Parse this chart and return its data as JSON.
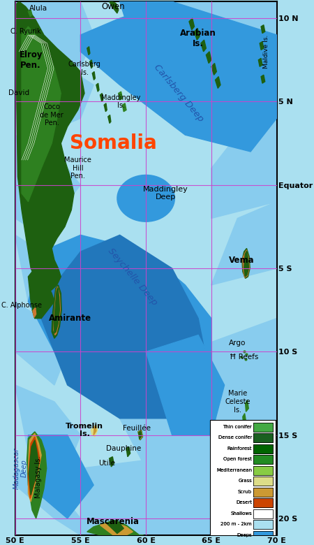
{
  "shallow_color": "#AAE0F0",
  "medium_color": "#88CCEE",
  "deep_color": "#3399DD",
  "deeper_color": "#2277BB",
  "land_darkest": "#1A4A10",
  "land_dark": "#1E6010",
  "land_medium": "#2E8020",
  "land_light": "#44AA22",
  "land_olive": "#88AA22",
  "land_yellow": "#DDDD88",
  "land_scrub": "#CC9933",
  "land_desert": "#CC4400",
  "grid_color": "#CC44CC",
  "xlim": [
    50,
    70
  ],
  "ylim": [
    -21,
    11
  ],
  "xticks": [
    50,
    55,
    60,
    65,
    70
  ],
  "yticks": [
    10,
    5,
    0,
    -5,
    -10,
    -15,
    -20
  ],
  "xlabel_labels": [
    "50 E",
    "55 E",
    "60 E",
    "65 E",
    "70 E"
  ],
  "ylabel_labels": [
    "10 N",
    "5 N",
    "Equator",
    "5 S",
    "10 S",
    "15 S",
    "20 S"
  ],
  "legend_items": [
    [
      "Thin conifer",
      "#44AA44"
    ],
    [
      "Dense conifer",
      "#1A6020"
    ],
    [
      "Rainforest",
      "#006400"
    ],
    [
      "Open forest",
      "#228B22"
    ],
    [
      "Mediterranean",
      "#88CC44"
    ],
    [
      "Grass",
      "#DDDD88"
    ],
    [
      "Scrub",
      "#CC9933"
    ],
    [
      "Desert",
      "#CC4400"
    ],
    [
      "Shallows",
      "#FFFFFF"
    ],
    [
      "200 m - 2km",
      "#AAE0F0"
    ],
    [
      "Deeps",
      "#3399DD"
    ]
  ]
}
